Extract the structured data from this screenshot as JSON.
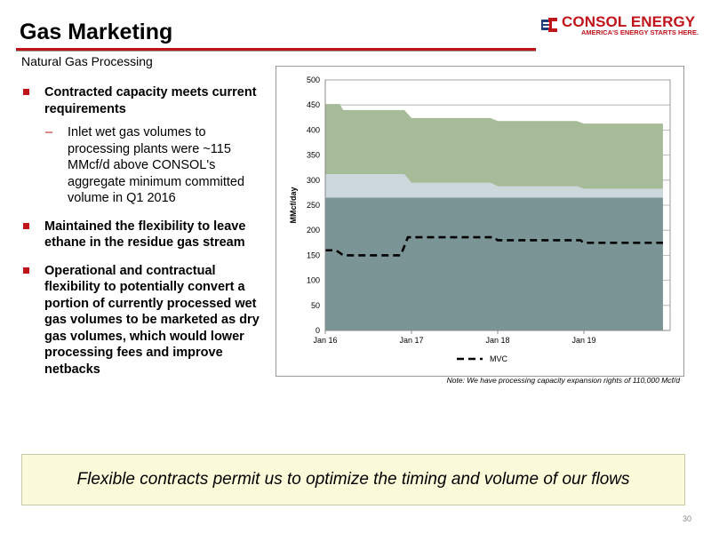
{
  "header": {
    "title": "Gas Marketing",
    "subtitle": "Natural Gas Processing",
    "logo_name": "CONSOL ENERGY",
    "logo_tagline": "AMERICA'S ENERGY STARTS HERE."
  },
  "bullets": [
    {
      "text": "Contracted capacity meets current requirements",
      "sub": "Inlet wet gas volumes to processing plants were ~115 MMcf/d above CONSOL's aggregate minimum committed volume in Q1 2016"
    },
    {
      "text": "Maintained the flexibility to leave ethane in the residue gas stream"
    },
    {
      "text": "Operational and contractual flexibility to potentially convert a portion of currently processed wet gas volumes to be marketed as dry gas volumes, which would lower processing fees and improve netbacks"
    }
  ],
  "note": "Note: We have processing capacity expansion rights of 110,000 Mcf/d",
  "banner": "Flexible contracts permit us to optimize the timing and volume of our flows",
  "page_number": "30",
  "chart_data": {
    "type": "area",
    "ylabel": "MMcf/day",
    "ylim": [
      0,
      500
    ],
    "yticks": [
      0,
      50,
      100,
      150,
      200,
      250,
      300,
      350,
      400,
      450,
      500
    ],
    "xlim": [
      0,
      48
    ],
    "xticks": [
      {
        "label": "Jan 16",
        "x": 0
      },
      {
        "label": "Jan 17",
        "x": 12
      },
      {
        "label": "Jan 18",
        "x": 24
      },
      {
        "label": "Jan 19",
        "x": 36
      }
    ],
    "grid": true,
    "legend": "bottom",
    "colors": {
      "band1": "#7b9596",
      "band2": "#ccd8dc",
      "band3": "#a6bb98",
      "mvc": "#000000"
    },
    "series": [
      {
        "kind": "area",
        "x": [
          0,
          47
        ],
        "values": [
          265,
          265
        ]
      },
      {
        "kind": "area",
        "x": [
          0,
          2,
          2.5,
          11,
          12,
          23,
          24,
          35,
          36,
          47
        ],
        "values": [
          312,
          312,
          312,
          312,
          295,
          295,
          288,
          288,
          283,
          283
        ]
      },
      {
        "kind": "area",
        "x": [
          0,
          2,
          2.5,
          11,
          12,
          23,
          24,
          35,
          36,
          47
        ],
        "values": [
          452,
          452,
          440,
          440,
          424,
          424,
          418,
          418,
          413,
          413
        ]
      },
      {
        "kind": "line",
        "name": "MVC",
        "x": [
          0,
          1.5,
          2.5,
          10.5,
          11.5,
          23.5,
          24,
          35.5,
          36,
          47
        ],
        "values": [
          160,
          160,
          150,
          150,
          186,
          186,
          180,
          180,
          175,
          175
        ]
      }
    ]
  }
}
